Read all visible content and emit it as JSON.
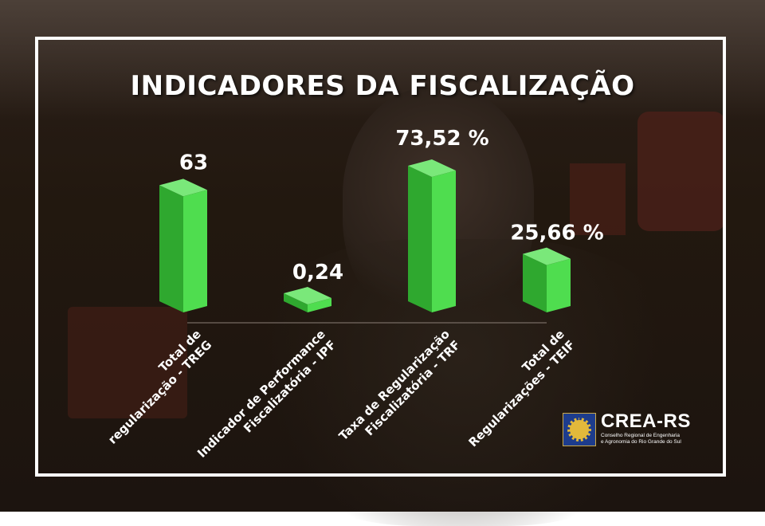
{
  "title": "INDICADORES DA FISCALIZAÇÃO",
  "colors": {
    "bar_front": "#4fdd4f",
    "bar_top": "#7ae87a",
    "bar_side": "#2fa82f",
    "frame": "#ffffff"
  },
  "chart_data": {
    "type": "bar",
    "title": "INDICADORES DA FISCALIZAÇÃO",
    "categories": [
      [
        "Total de",
        "regularização - TREG"
      ],
      [
        "Indicador de Performance",
        "Fiscalizatória - IPF"
      ],
      [
        "Taxa de Regularização",
        "Fiscalizatória - TRF"
      ],
      [
        "Total de",
        "Regularizações - TEIF"
      ]
    ],
    "values": [
      63,
      0.24,
      73.52,
      25.66
    ],
    "value_labels": [
      "63",
      "0,24",
      "73,52 %",
      "25,66 %"
    ],
    "grid": false,
    "legend": "none"
  },
  "logo": {
    "icon": "crea-gear-seal-icon",
    "name": "CREA-RS",
    "subtitle_line1": "Conselho Regional de Engenharia",
    "subtitle_line2": "e Agronomia do Rio Grande do Sul"
  }
}
